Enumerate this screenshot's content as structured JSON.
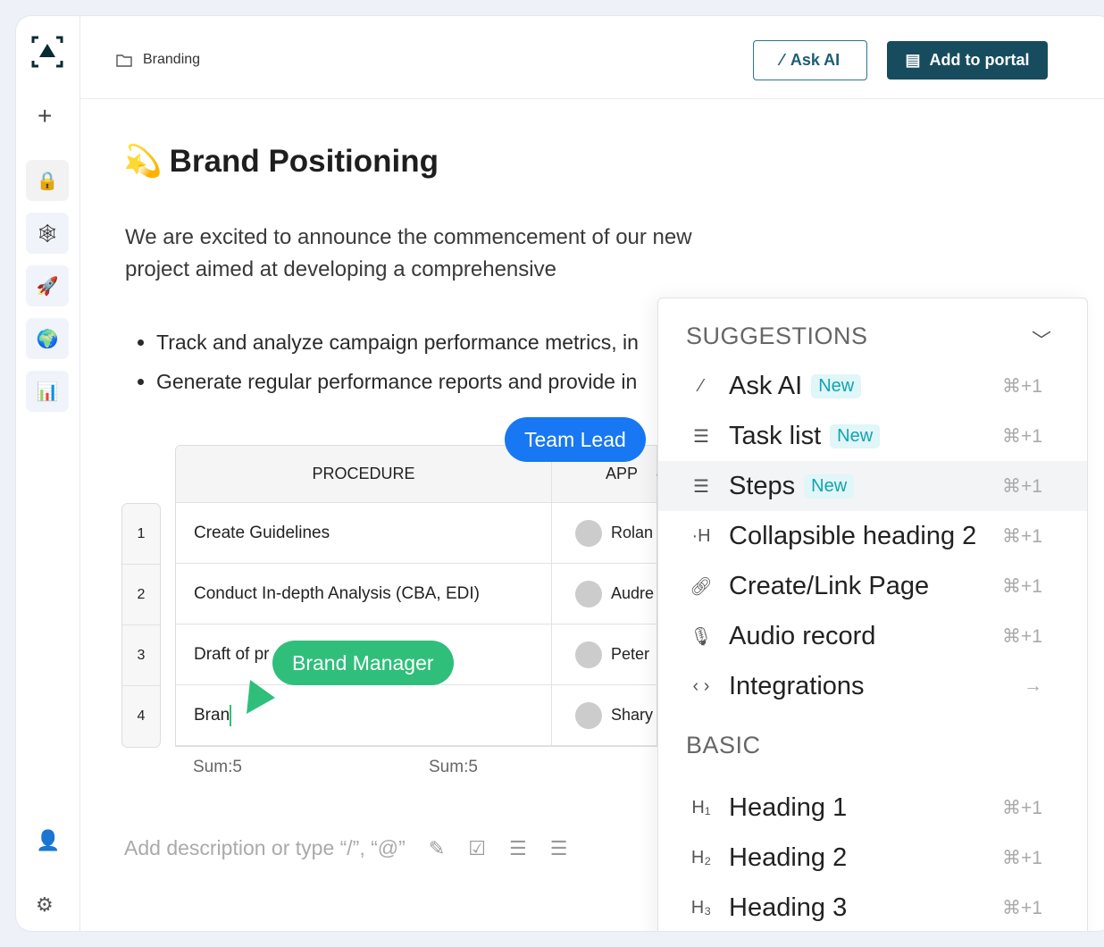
{
  "breadcrumb": {
    "icon": "folder-icon",
    "label": "Branding"
  },
  "header": {
    "ask_ai": "Ask AI",
    "add_to_portal": "Add to portal"
  },
  "page": {
    "title": "Brand Positioning",
    "title_emoji": "💫",
    "paragraph": "We are excited to announce the commencement of our new project aimed at developing a comprehensive",
    "bullets": [
      "Track and analyze campaign performance metrics, in",
      "Generate regular performance reports and provide in"
    ]
  },
  "table": {
    "headers": [
      "PROCEDURE",
      "APP"
    ],
    "rows": [
      {
        "num": "1",
        "procedure": "Create Guidelines",
        "person": "Rolan"
      },
      {
        "num": "2",
        "procedure": "Conduct In-depth Analysis (CBA, EDI)",
        "person": "Audre"
      },
      {
        "num": "3",
        "procedure": "Draft of pr",
        "person": "Peter"
      },
      {
        "num": "4",
        "procedure": "Bran",
        "person": "Shary"
      }
    ],
    "sums": [
      "Sum:5",
      "Sum:5"
    ]
  },
  "description_placeholder": "Add description or type “/”, “@”",
  "cursors": {
    "team_lead": "Team Lead",
    "brand_manager": "Brand Manager",
    "team_lead_color": "#1877f2",
    "brand_manager_color": "#2fbf7a"
  },
  "menu": {
    "suggestions_label": "SUGGESTIONS",
    "basic_label": "BASIC",
    "suggestions": [
      {
        "icon": "magic-wand-icon",
        "label": "Ask AI",
        "badge": "New",
        "shortcut": "⌘+1"
      },
      {
        "icon": "task-list-icon",
        "label": "Task list",
        "badge": "New",
        "shortcut": "⌘+1"
      },
      {
        "icon": "steps-icon",
        "label": "Steps",
        "badge": "New",
        "shortcut": "⌘+1"
      },
      {
        "icon": "collapsible-heading-icon",
        "label": "Collapsible heading 2",
        "shortcut": "⌘+1"
      },
      {
        "icon": "link-icon",
        "label": "Create/Link Page",
        "shortcut": "⌘+1"
      },
      {
        "icon": "microphone-icon",
        "label": "Audio record",
        "shortcut": "⌘+1"
      },
      {
        "icon": "code-icon",
        "label": "Integrations",
        "shortcut": "→"
      }
    ],
    "basic": [
      {
        "icon": "h1-icon",
        "label": "Heading 1",
        "shortcut": "⌘+1"
      },
      {
        "icon": "h2-icon",
        "label": "Heading 2",
        "shortcut": "⌘+1"
      },
      {
        "icon": "h3-icon",
        "label": "Heading 3",
        "shortcut": "⌘+1"
      }
    ]
  },
  "colors": {
    "brand": "#174c5f",
    "accent_badge": "#13a3b0"
  }
}
